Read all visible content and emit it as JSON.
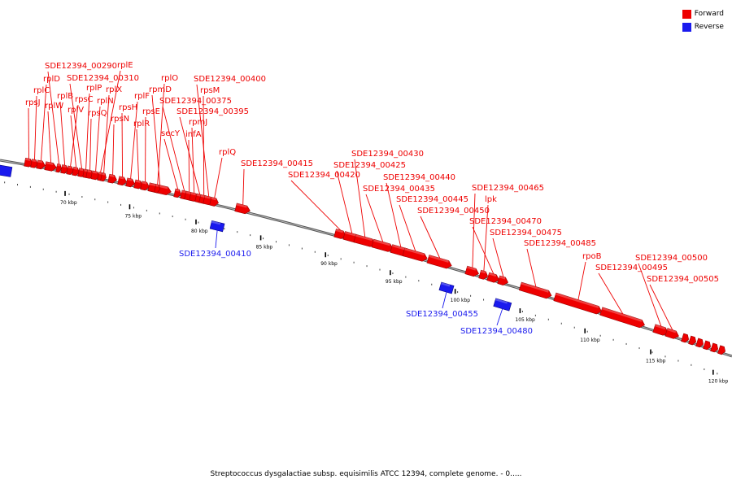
{
  "legend": {
    "forward": {
      "label": "Forward",
      "color": "#ee0000"
    },
    "reverse": {
      "label": "Reverse",
      "color": "#1a1aee"
    }
  },
  "footer": {
    "text": "Streptococcus dysgalactiae subsp. equisimilis ATCC 12394, complete genome. - 0....."
  },
  "scale": {
    "unit": "kbp",
    "ticks": [
      "70 kbp",
      "75 kbp",
      "80 kbp",
      "85 kbp",
      "90 kbp",
      "95 kbp",
      "100 kbp",
      "105 kbp",
      "110 kbp",
      "115 kbp",
      "120 kbp"
    ]
  },
  "genes": [
    {
      "name": "rpsJ",
      "strand": "forward"
    },
    {
      "name": "rplC",
      "strand": "forward"
    },
    {
      "name": "rplD",
      "strand": "forward"
    },
    {
      "name": "rplW",
      "strand": "forward"
    },
    {
      "name": "SDE12394_00290",
      "strand": "forward"
    },
    {
      "name": "rplB",
      "strand": "forward"
    },
    {
      "name": "rpsC",
      "strand": "forward"
    },
    {
      "name": "rplV",
      "strand": "forward"
    },
    {
      "name": "SDE12394_00310",
      "strand": "forward"
    },
    {
      "name": "rplP",
      "strand": "forward"
    },
    {
      "name": "rpsQ",
      "strand": "forward"
    },
    {
      "name": "rplN",
      "strand": "forward"
    },
    {
      "name": "rplE",
      "strand": "forward"
    },
    {
      "name": "rplX",
      "strand": "forward"
    },
    {
      "name": "rpsN",
      "strand": "forward"
    },
    {
      "name": "rpsH",
      "strand": "forward"
    },
    {
      "name": "rplF",
      "strand": "forward"
    },
    {
      "name": "rplR",
      "strand": "forward"
    },
    {
      "name": "rpsE",
      "strand": "forward"
    },
    {
      "name": "rpmD",
      "strand": "forward"
    },
    {
      "name": "rplO",
      "strand": "forward"
    },
    {
      "name": "secY",
      "strand": "forward"
    },
    {
      "name": "SDE12394_00375",
      "strand": "forward"
    },
    {
      "name": "infA",
      "strand": "forward"
    },
    {
      "name": "rpmJ",
      "strand": "forward"
    },
    {
      "name": "SDE12394_00395",
      "strand": "forward"
    },
    {
      "name": "rpsM",
      "strand": "forward"
    },
    {
      "name": "SDE12394_00400",
      "strand": "forward"
    },
    {
      "name": "rplQ",
      "strand": "forward"
    },
    {
      "name": "SDE12394_00410",
      "strand": "reverse"
    },
    {
      "name": "SDE12394_00415",
      "strand": "forward"
    },
    {
      "name": "SDE12394_00420",
      "strand": "forward"
    },
    {
      "name": "SDE12394_00425",
      "strand": "forward"
    },
    {
      "name": "SDE12394_00430",
      "strand": "forward"
    },
    {
      "name": "SDE12394_00435",
      "strand": "forward"
    },
    {
      "name": "SDE12394_00440",
      "strand": "forward"
    },
    {
      "name": "SDE12394_00445",
      "strand": "forward"
    },
    {
      "name": "SDE12394_00450",
      "strand": "forward"
    },
    {
      "name": "SDE12394_00455",
      "strand": "reverse"
    },
    {
      "name": "SDE12394_00465",
      "strand": "forward"
    },
    {
      "name": "lpk",
      "strand": "forward"
    },
    {
      "name": "SDE12394_00470",
      "strand": "forward"
    },
    {
      "name": "SDE12394_00475",
      "strand": "forward"
    },
    {
      "name": "SDE12394_00480",
      "strand": "reverse"
    },
    {
      "name": "SDE12394_00485",
      "strand": "forward"
    },
    {
      "name": "rpoB",
      "strand": "forward"
    },
    {
      "name": "SDE12394_00495",
      "strand": "forward"
    },
    {
      "name": "SDE12394_00500",
      "strand": "forward"
    },
    {
      "name": "SDE12394_00505",
      "strand": "forward"
    }
  ]
}
